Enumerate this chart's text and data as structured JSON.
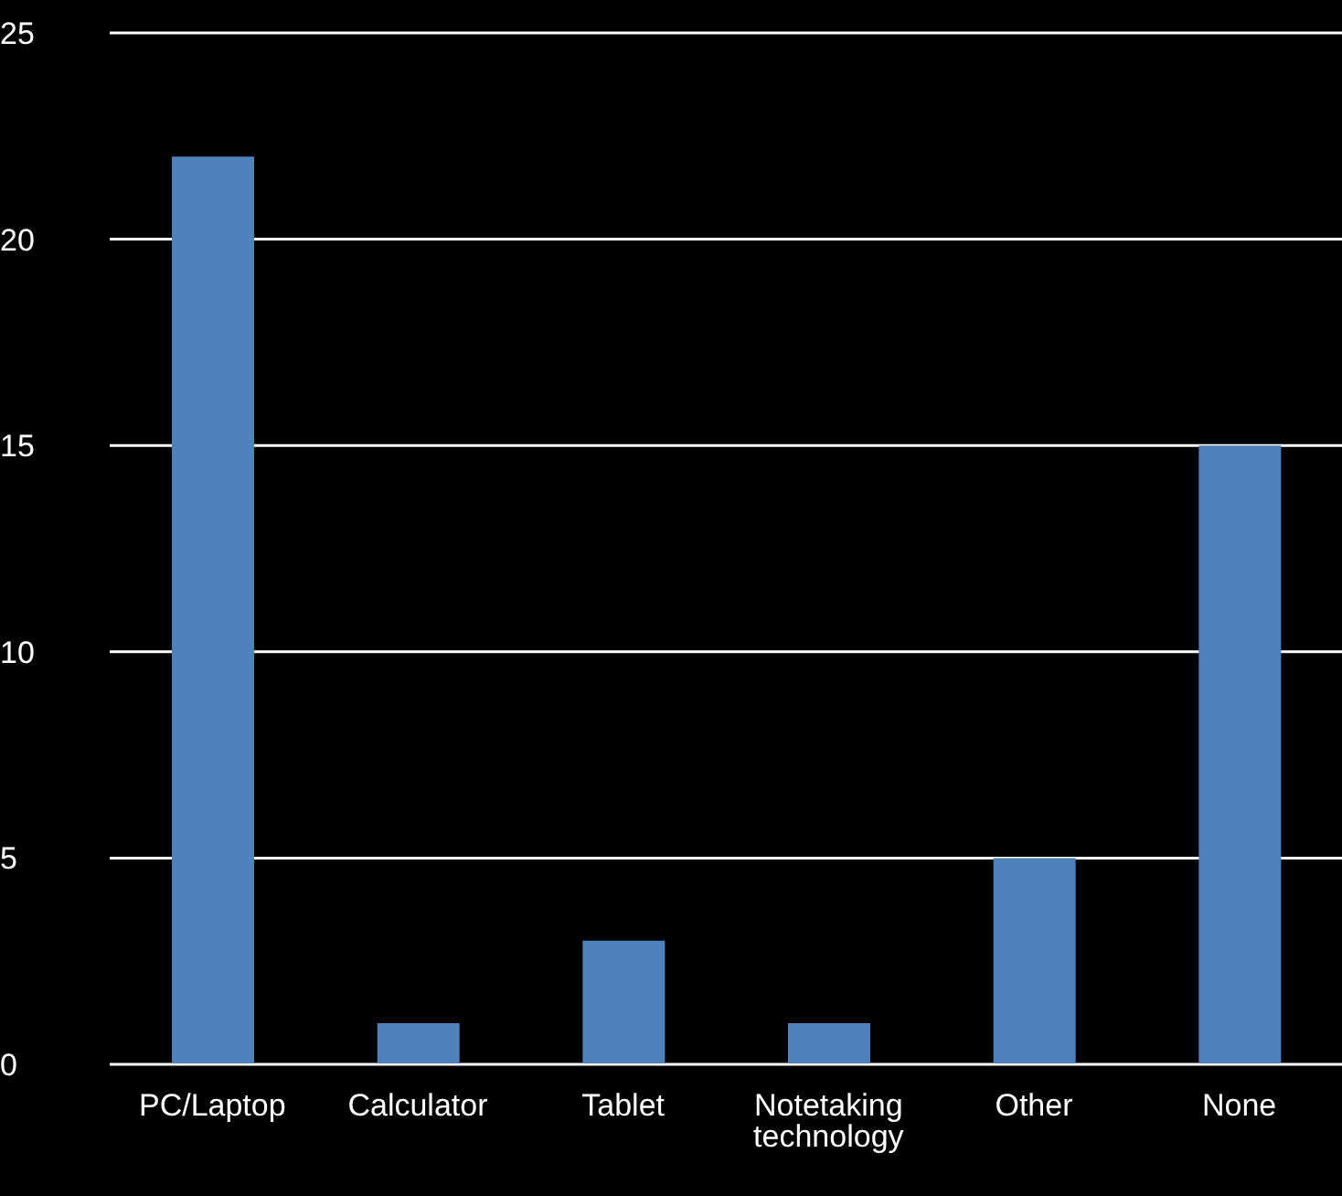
{
  "chart_data": {
    "type": "bar",
    "categories": [
      "PC/Laptop",
      "Calculator",
      "Tablet",
      "Notetaking technology",
      "Other",
      "None"
    ],
    "values": [
      22,
      1,
      3,
      1,
      5,
      15
    ],
    "color": "#4f81bd",
    "ylim": [
      0,
      25
    ],
    "yticks": [
      0,
      5,
      10,
      15,
      20,
      25
    ],
    "grid": "y",
    "legend": false
  }
}
